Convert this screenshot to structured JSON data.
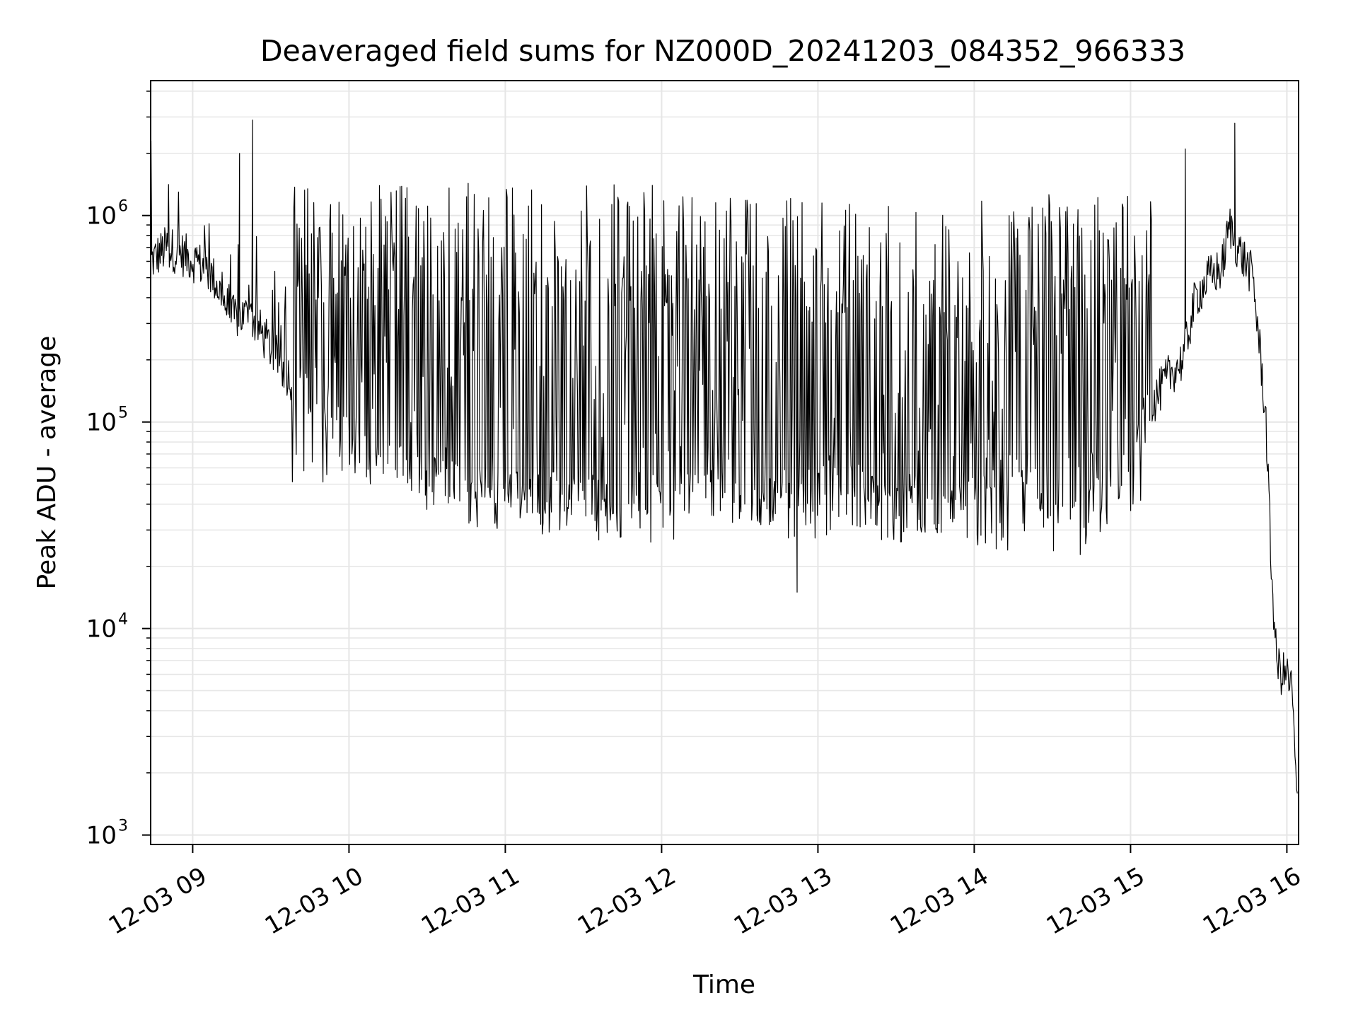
{
  "chart_data": {
    "type": "line",
    "title": "Deaveraged field sums for NZ000D_20241203_084352_966333",
    "xlabel": "Time",
    "ylabel": "Peak ADU - average",
    "yscale": "log",
    "ylim": [
      900,
      4500000
    ],
    "xlim": [
      "2024-12-03 08:43:52",
      "2024-12-03 16:04:30"
    ],
    "grid": true,
    "line_color": "#000000",
    "grid_color": "#e6e6e6",
    "x_ticks": [
      {
        "label": "12-03 09",
        "value": "2024-12-03 09:00"
      },
      {
        "label": "12-03 10",
        "value": "2024-12-03 10:00"
      },
      {
        "label": "12-03 11",
        "value": "2024-12-03 11:00"
      },
      {
        "label": "12-03 12",
        "value": "2024-12-03 12:00"
      },
      {
        "label": "12-03 13",
        "value": "2024-12-03 13:00"
      },
      {
        "label": "12-03 14",
        "value": "2024-12-03 14:00"
      },
      {
        "label": "12-03 15",
        "value": "2024-12-03 15:00"
      },
      {
        "label": "12-03 16",
        "value": "2024-12-03 16:00"
      }
    ],
    "y_ticks": [
      {
        "base": "10",
        "exp": "3",
        "value": 1000
      },
      {
        "base": "10",
        "exp": "4",
        "value": 10000
      },
      {
        "base": "10",
        "exp": "5",
        "value": 100000
      },
      {
        "base": "10",
        "exp": "6",
        "value": 1000000
      }
    ],
    "series": [
      {
        "baseline": [
          [
            "2024-12-03 08:44",
            600000
          ],
          [
            "2024-12-03 08:50",
            700000
          ],
          [
            "2024-12-03 08:56",
            650000
          ],
          [
            "2024-12-03 09:03",
            580000
          ],
          [
            "2024-12-03 09:08",
            500000
          ],
          [
            "2024-12-03 09:15",
            320000
          ],
          [
            "2024-12-03 09:22",
            330000
          ],
          [
            "2024-12-03 09:28",
            250000
          ],
          [
            "2024-12-03 09:35",
            180000
          ],
          [
            "2024-12-03 09:42",
            140000
          ],
          [
            "2024-12-03 09:50",
            115000
          ],
          [
            "2024-12-03 09:58",
            85000
          ],
          [
            "2024-12-03 10:05",
            70000
          ],
          [
            "2024-12-03 10:15",
            60000
          ],
          [
            "2024-12-03 10:25",
            55000
          ],
          [
            "2024-12-03 10:40",
            50000
          ],
          [
            "2024-12-03 11:00",
            47000
          ],
          [
            "2024-12-03 11:20",
            45000
          ],
          [
            "2024-12-03 11:40",
            45000
          ],
          [
            "2024-12-03 12:00",
            45000
          ],
          [
            "2024-12-03 12:20",
            45000
          ],
          [
            "2024-12-03 12:40",
            40000
          ],
          [
            "2024-12-03 12:55",
            40000
          ],
          [
            "2024-12-03 13:05",
            60000
          ],
          [
            "2024-12-03 13:15",
            50000
          ],
          [
            "2024-12-03 13:30",
            40000
          ],
          [
            "2024-12-03 13:50",
            35000
          ],
          [
            "2024-12-03 14:05",
            60000
          ],
          [
            "2024-12-03 14:20",
            55000
          ],
          [
            "2024-12-03 14:35",
            35000
          ],
          [
            "2024-12-03 14:50",
            45000
          ],
          [
            "2024-12-03 15:00",
            60000
          ],
          [
            "2024-12-03 15:08",
            120000
          ],
          [
            "2024-12-03 15:15",
            170000
          ],
          [
            "2024-12-03 15:20",
            200000
          ],
          [
            "2024-12-03 15:25",
            400000
          ],
          [
            "2024-12-03 15:30",
            500000
          ],
          [
            "2024-12-03 15:35",
            550000
          ],
          [
            "2024-12-03 15:38",
            900000
          ],
          [
            "2024-12-03 15:41",
            700000
          ],
          [
            "2024-12-03 15:44",
            600000
          ],
          [
            "2024-12-03 15:47",
            500000
          ],
          [
            "2024-12-03 15:50",
            200000
          ],
          [
            "2024-12-03 15:52",
            100000
          ],
          [
            "2024-12-03 15:54",
            20000
          ],
          [
            "2024-12-03 15:56",
            7000
          ],
          [
            "2024-12-03 15:58",
            6000
          ],
          [
            "2024-12-03 16:00",
            6000
          ],
          [
            "2024-12-03 16:02",
            5000
          ],
          [
            "2024-12-03 16:04",
            1300
          ]
        ],
        "spike_envelope": [
          [
            "2024-12-03 09:38",
            1500000
          ],
          [
            "2024-12-03 10:10",
            1400000
          ],
          [
            "2024-12-03 11:00",
            1450000
          ],
          [
            "2024-12-03 12:00",
            1400000
          ],
          [
            "2024-12-03 13:00",
            1300000
          ],
          [
            "2024-12-03 14:00",
            1200000
          ],
          [
            "2024-12-03 15:00",
            1400000
          ]
        ],
        "dip_envelope": [
          [
            "2024-12-03 10:00",
            50000
          ],
          [
            "2024-12-03 11:00",
            28000
          ],
          [
            "2024-12-03 12:00",
            26000
          ],
          [
            "2024-12-03 13:00",
            27000
          ],
          [
            "2024-12-03 14:00",
            24000
          ],
          [
            "2024-12-03 14:40",
            22000
          ],
          [
            "2024-12-03 15:05",
            40000
          ]
        ],
        "notable_peaks": [
          [
            "2024-12-03 08:44",
            2300000
          ],
          [
            "2024-12-03 09:18",
            2000000
          ],
          [
            "2024-12-03 09:23",
            2900000
          ],
          [
            "2024-12-03 15:21",
            2100000
          ],
          [
            "2024-12-03 15:40",
            2800000
          ],
          [
            "2024-12-03 12:52",
            15000
          ]
        ]
      }
    ]
  }
}
